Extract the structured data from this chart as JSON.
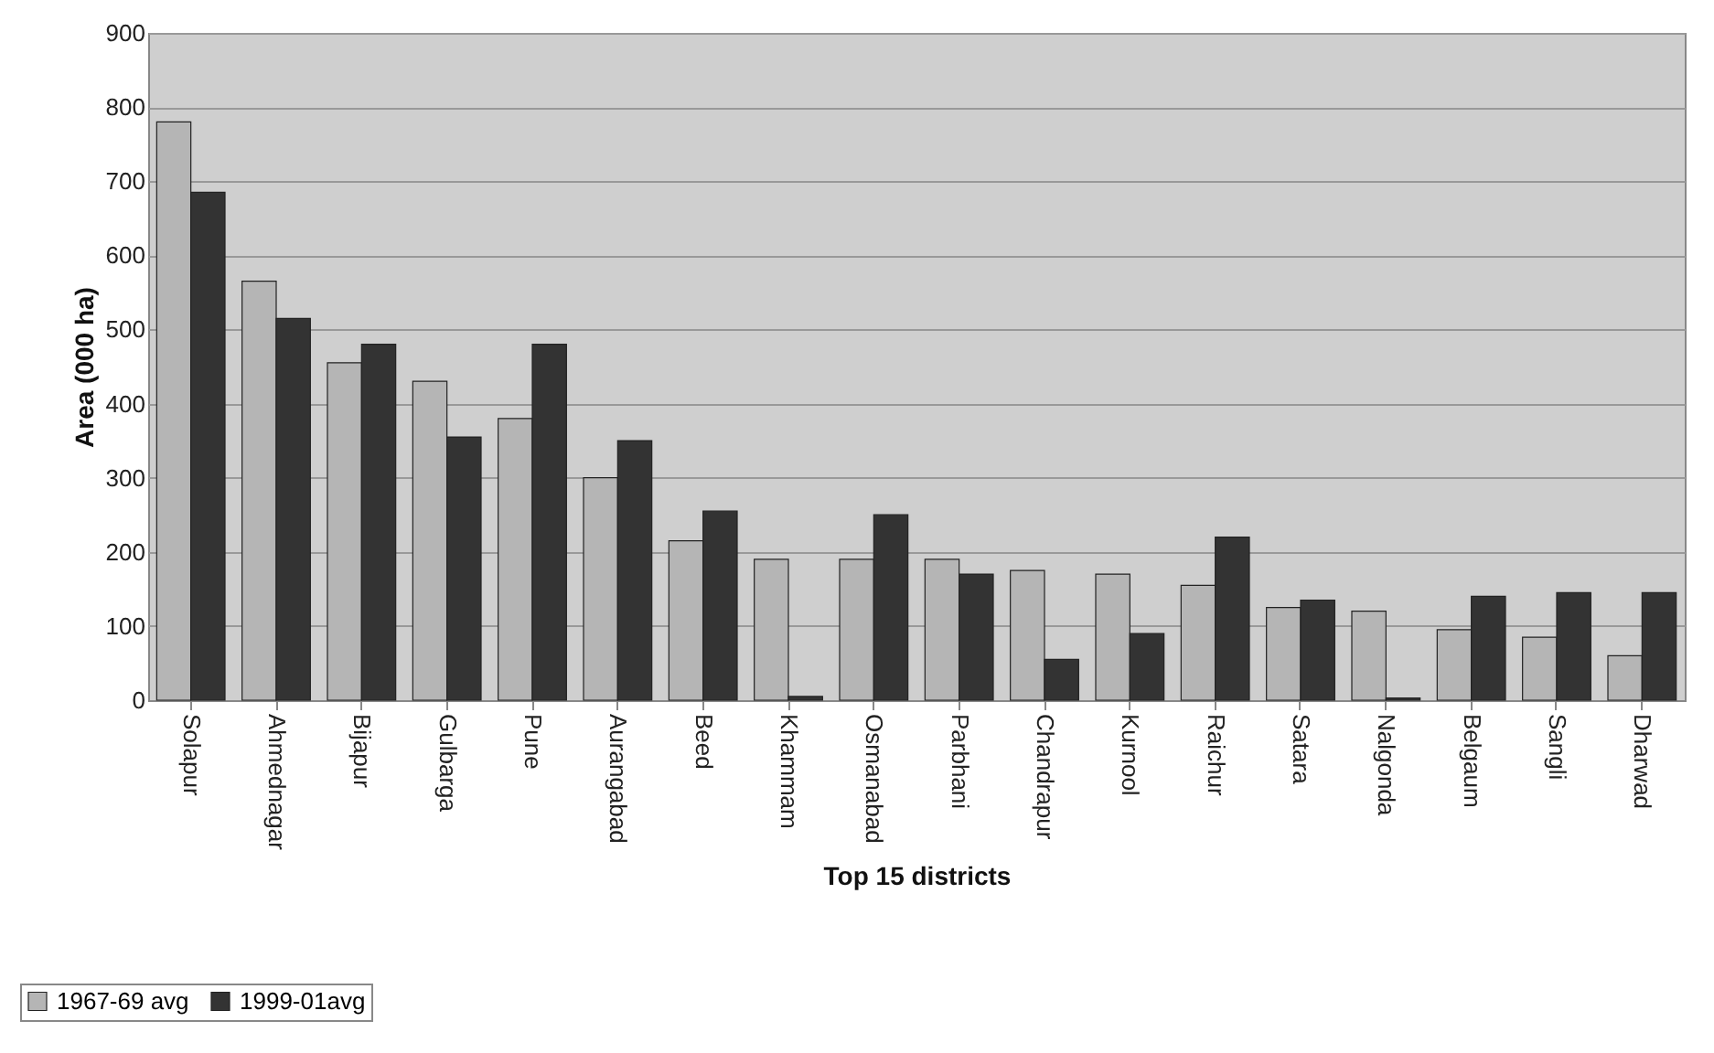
{
  "chart_data": {
    "type": "bar",
    "xlabel": "Top 15 districts",
    "ylabel": "Area (000 ha)",
    "categories": [
      "Solapur",
      "Ahmednagar",
      "Bijapur",
      "Gulbarga",
      "Pune",
      "Aurangabad",
      "Beed",
      "Khammam",
      "Osmanabad",
      "Parbhani",
      "Chandrapur",
      "Kurnool",
      "Raichur",
      "Satara",
      "Nalgonda",
      "Belgaum",
      "Sangli",
      "Dharwad"
    ],
    "series": [
      {
        "name": "1967-69 avg",
        "color": "#b5b5b5",
        "values": [
          780,
          565,
          455,
          430,
          380,
          300,
          215,
          190,
          190,
          190,
          175,
          170,
          155,
          125,
          120,
          95,
          85,
          60
        ]
      },
      {
        "name": "1999-01avg",
        "color": "#333333",
        "values": [
          685,
          515,
          480,
          355,
          480,
          350,
          255,
          5,
          250,
          170,
          55,
          90,
          220,
          135,
          3,
          140,
          145,
          145
        ]
      }
    ],
    "ylim": [
      0,
      900
    ],
    "yticks": [
      0,
      100,
      200,
      300,
      400,
      500,
      600,
      700,
      800,
      900
    ],
    "grid": "y",
    "legend": "bottom left"
  }
}
